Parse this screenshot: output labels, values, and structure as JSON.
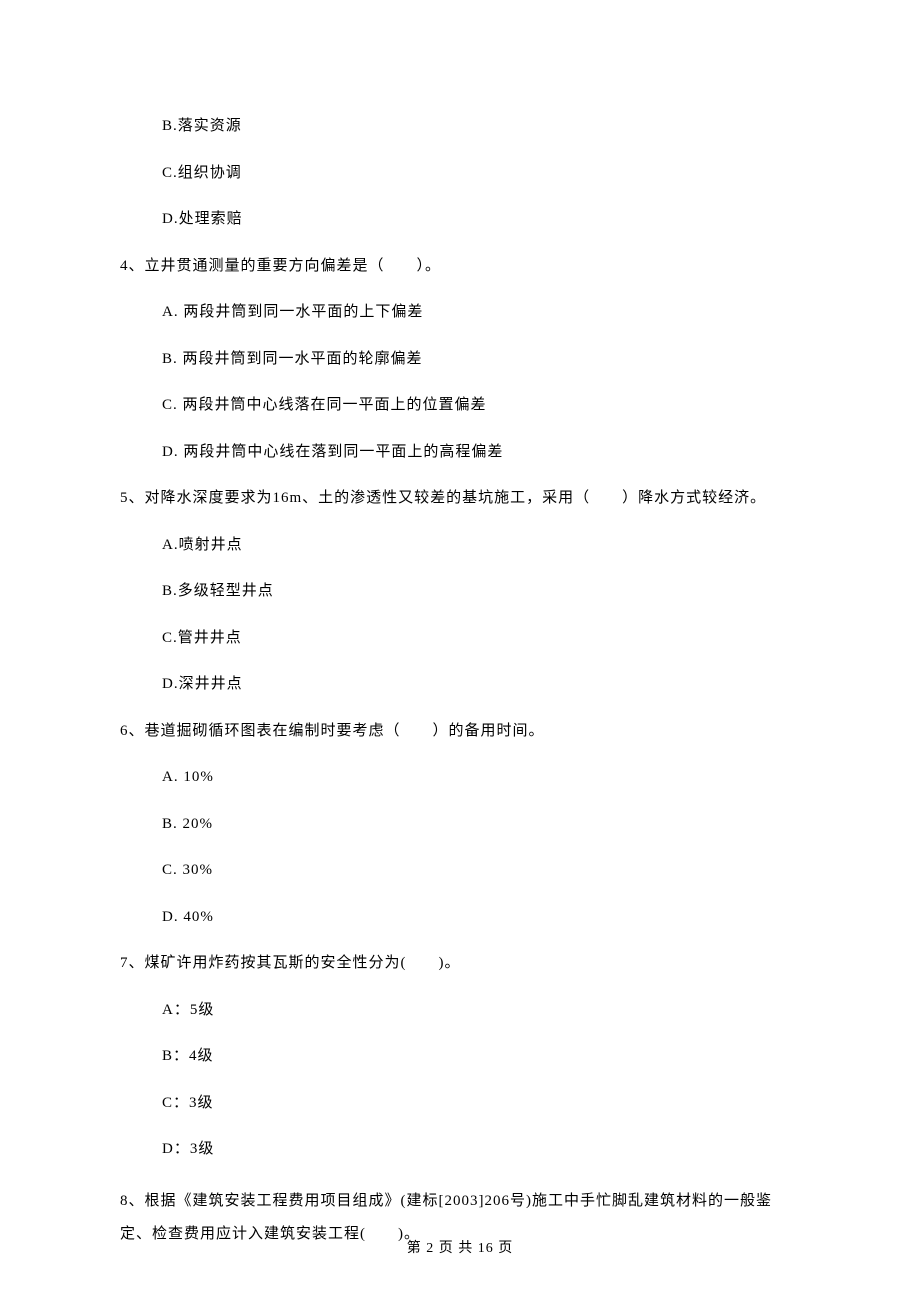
{
  "options_top": {
    "b": "B.落实资源",
    "c": "C.组织协调",
    "d": "D.处理索赔"
  },
  "q4": {
    "text": "4、立井贯通测量的重要方向偏差是（　　）。",
    "a": "A.  两段井筒到同一水平面的上下偏差",
    "b": "B.  两段井筒到同一水平面的轮廓偏差",
    "c": "C.  两段井筒中心线落在同一平面上的位置偏差",
    "d": "D.  两段井筒中心线在落到同一平面上的高程偏差"
  },
  "q5": {
    "text": "5、对降水深度要求为16m、土的渗透性又较差的基坑施工，采用（　　）降水方式较经济。",
    "a": "A.喷射井点",
    "b": "B.多级轻型井点",
    "c": "C.管井井点",
    "d": "D.深井井点"
  },
  "q6": {
    "text": "6、巷道掘砌循环图表在编制时要考虑（　　）的备用时间。",
    "a": "A.  10%",
    "b": "B.  20%",
    "c": "C.  30%",
    "d": "D.  40%"
  },
  "q7": {
    "text": "7、煤矿许用炸药按其瓦斯的安全性分为(　　)。",
    "a": "A：5级",
    "b": "B：4级",
    "c": "C：3级",
    "d": "D：3级"
  },
  "q8": {
    "text": "8、根据《建筑安装工程费用项目组成》(建标[2003]206号)施工中手忙脚乱建筑材料的一般鉴定、检查费用应计入建筑安装工程(　　)。"
  },
  "footer": "第 2 页 共 16 页"
}
